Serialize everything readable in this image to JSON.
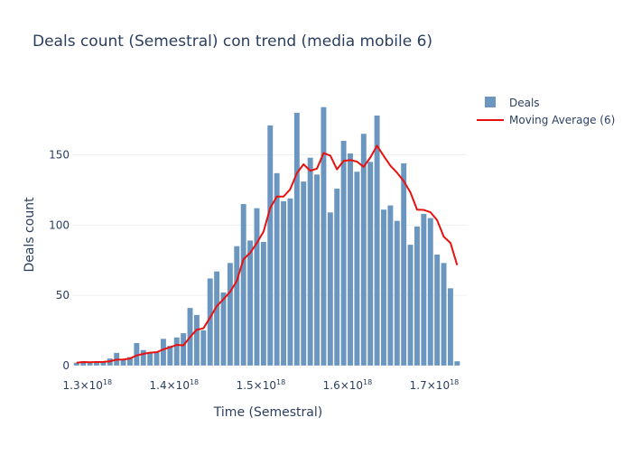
{
  "chart_data": {
    "type": "bar",
    "title": "Deals count (Semestral) con trend (media mobile 6)",
    "xlabel": "Time (Semestral)",
    "ylabel": "Deals count",
    "xlim": [
      1.2825e+18,
      1.7375e+18
    ],
    "ylim": [
      -2,
      196
    ],
    "x_ticks": [
      {
        "value": 1.3e+18,
        "mantissa": "1.3",
        "exp": "18"
      },
      {
        "value": 1.4e+18,
        "mantissa": "1.4",
        "exp": "18"
      },
      {
        "value": 1.5e+18,
        "mantissa": "1.5",
        "exp": "18"
      },
      {
        "value": 1.6e+18,
        "mantissa": "1.6",
        "exp": "18"
      },
      {
        "value": 1.7e+18,
        "mantissa": "1.7",
        "exp": "18"
      }
    ],
    "y_ticks": [
      "0",
      "50",
      "100",
      "150"
    ],
    "y_tick_values": [
      0,
      50,
      100,
      150
    ],
    "grid": true,
    "legend": "top-right",
    "colors": {
      "bar": "#6b96bf",
      "line": "#e8110f",
      "grid": "#eef0f4"
    },
    "x_start": 1.2875e+18,
    "x_step": 7700000000000000.0,
    "series": [
      {
        "name": "Deals",
        "type": "bar",
        "values": [
          2,
          3,
          2,
          3,
          3,
          5,
          9,
          4,
          6,
          16,
          11,
          9,
          10,
          19,
          14,
          20,
          23,
          41,
          36,
          25,
          62,
          67,
          52,
          73,
          85,
          115,
          89,
          112,
          88,
          171,
          137,
          117,
          119,
          180,
          131,
          148,
          136,
          184,
          109,
          126,
          160,
          151,
          138,
          165,
          145,
          178,
          111,
          114,
          103,
          144,
          86,
          99,
          108,
          105,
          79,
          73,
          55,
          3
        ]
      },
      {
        "name": "Moving Average (6)",
        "type": "line",
        "values": [
          2,
          2.5,
          2.3,
          2.5,
          2.6,
          3,
          4.2,
          4.3,
          5,
          7.2,
          8.3,
          9.2,
          9.5,
          11.5,
          13,
          14.7,
          14.3,
          20.3,
          25.5,
          26.5,
          34.2,
          42.3,
          47.2,
          52.5,
          60.3,
          75.7,
          80.2,
          87.3,
          95.3,
          112.2,
          120.3,
          120.3,
          125.5,
          137,
          143.3,
          138.7,
          140.2,
          151.3,
          149.5,
          139.7,
          145.7,
          146.3,
          145.2,
          141.5,
          148.2,
          156.5,
          149.3,
          142.3,
          137.3,
          131.3,
          123.3,
          111,
          110.8,
          109.2,
          103.5,
          91.7,
          87.3,
          71.5
        ]
      }
    ]
  }
}
